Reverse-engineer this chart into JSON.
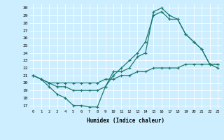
{
  "xlabel": "Humidex (Indice chaleur)",
  "bg_color": "#cceeff",
  "line_color": "#1a7a6e",
  "grid_color": "#ffffff",
  "xlim": [
    -0.5,
    23.5
  ],
  "ylim": [
    16.5,
    30.5
  ],
  "xticks": [
    0,
    1,
    2,
    3,
    4,
    5,
    6,
    7,
    8,
    9,
    10,
    11,
    12,
    13,
    14,
    15,
    16,
    17,
    18,
    19,
    20,
    21,
    22,
    23
  ],
  "yticks": [
    17,
    18,
    19,
    20,
    21,
    22,
    23,
    24,
    25,
    26,
    27,
    28,
    29,
    30
  ],
  "line1_x": [
    0,
    1,
    2,
    3,
    4,
    5,
    6,
    7,
    8,
    9,
    10,
    11,
    12,
    13,
    14,
    15,
    16,
    17,
    18,
    19,
    20,
    21,
    22,
    23
  ],
  "line1_y": [
    21.0,
    20.5,
    19.5,
    18.5,
    18.0,
    17.0,
    17.0,
    16.8,
    16.8,
    19.5,
    21.5,
    21.5,
    22.0,
    23.5,
    24.0,
    29.5,
    30.0,
    29.0,
    28.5,
    26.5,
    25.5,
    24.5,
    22.5,
    22.0
  ],
  "line2_x": [
    0,
    1,
    2,
    3,
    4,
    5,
    6,
    7,
    8,
    9,
    10,
    11,
    12,
    13,
    14,
    15,
    16,
    17,
    18,
    19,
    20,
    21,
    22,
    23
  ],
  "line2_y": [
    21.0,
    20.5,
    20.0,
    19.5,
    19.5,
    19.0,
    19.0,
    19.0,
    19.0,
    19.5,
    21.0,
    22.0,
    23.0,
    24.0,
    25.5,
    29.0,
    29.5,
    28.5,
    28.5,
    26.5,
    25.5,
    24.5,
    22.5,
    22.5
  ],
  "line3_x": [
    0,
    1,
    2,
    3,
    4,
    5,
    6,
    7,
    8,
    9,
    10,
    11,
    12,
    13,
    14,
    15,
    16,
    17,
    18,
    19,
    20,
    21,
    22,
    23
  ],
  "line3_y": [
    21.0,
    20.5,
    20.0,
    20.0,
    20.0,
    20.0,
    20.0,
    20.0,
    20.0,
    20.5,
    20.5,
    21.0,
    21.0,
    21.5,
    21.5,
    22.0,
    22.0,
    22.0,
    22.0,
    22.5,
    22.5,
    22.5,
    22.5,
    22.5
  ]
}
